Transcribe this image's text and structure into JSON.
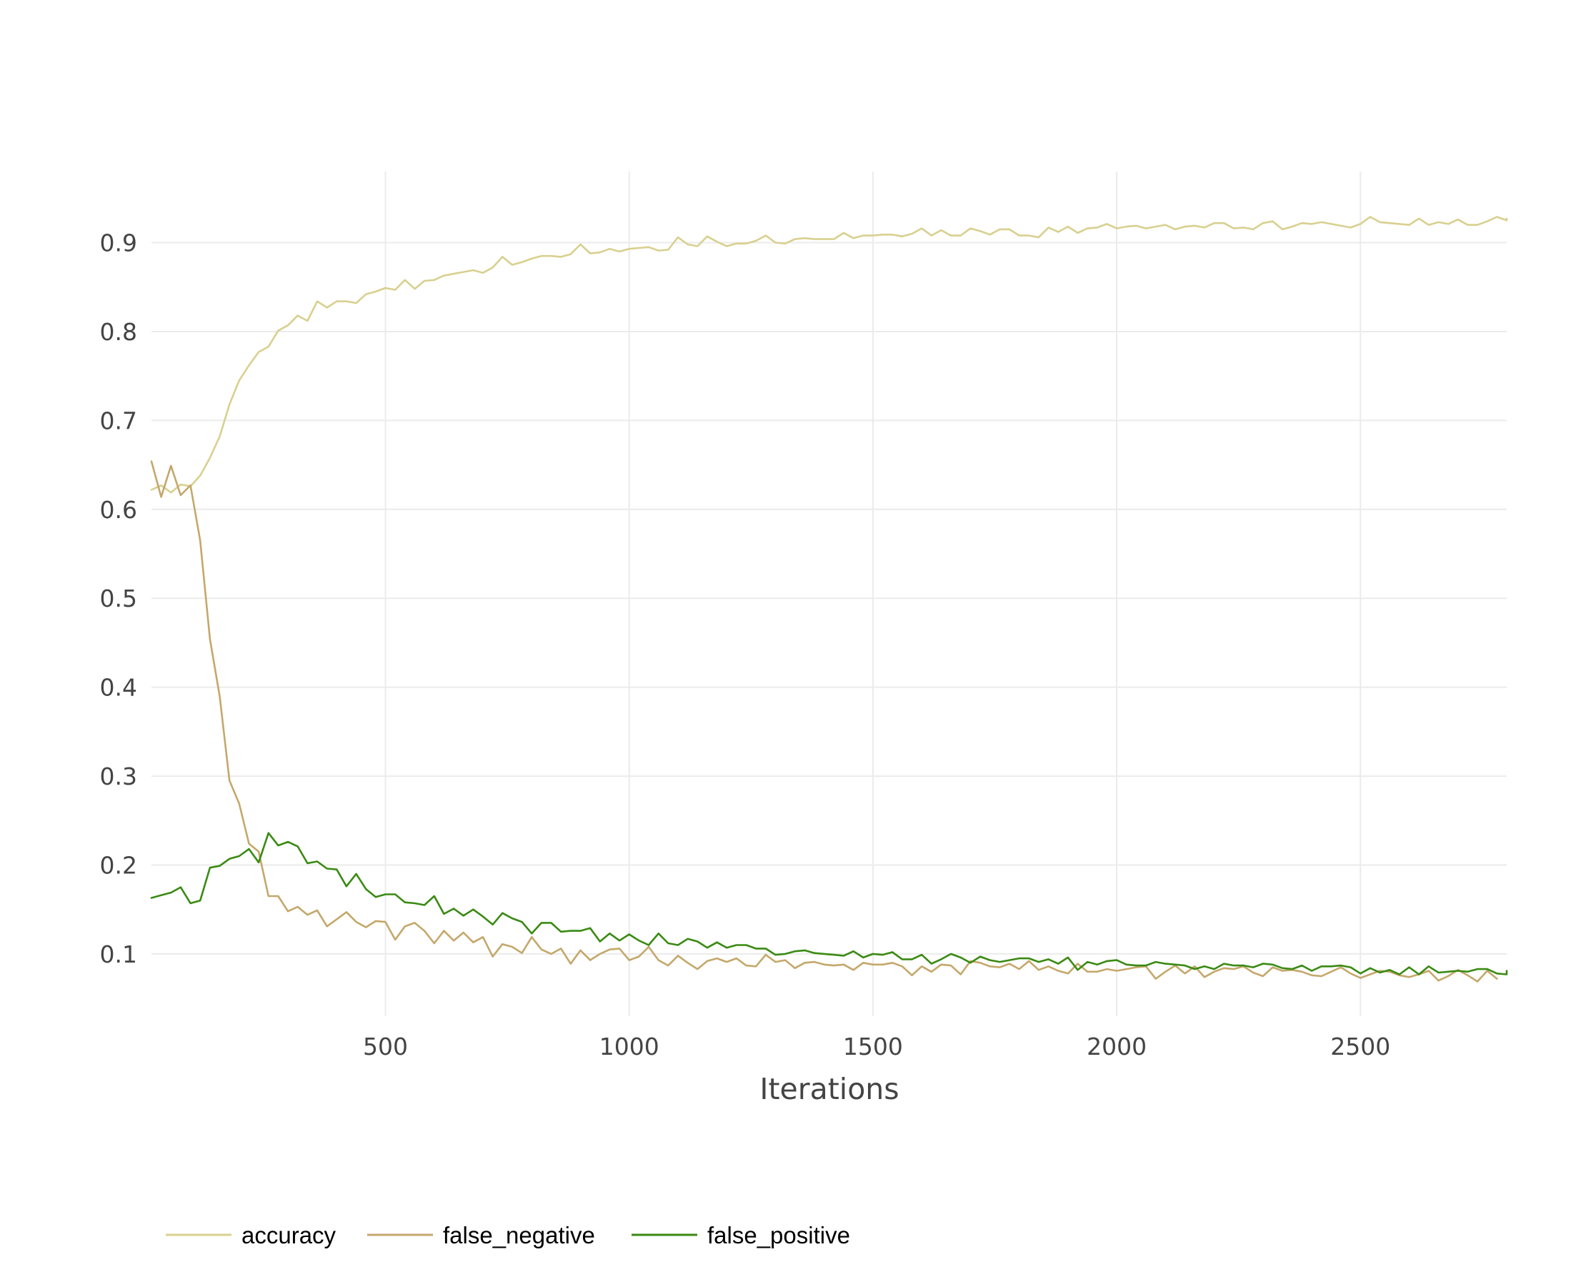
{
  "chart_data": {
    "type": "line",
    "title": "",
    "xlabel": "Iterations",
    "ylabel": "",
    "xlim": [
      20,
      2800
    ],
    "ylim": [
      0.03,
      0.98
    ],
    "xticks": [
      500,
      1000,
      1500,
      2000,
      2500
    ],
    "yticks": [
      0.1,
      0.2,
      0.3,
      0.4,
      0.5,
      0.6,
      0.7,
      0.8,
      0.9
    ],
    "ytick_labels": [
      "0.1",
      "0.2",
      "0.3",
      "0.4",
      "0.5",
      "0.6",
      "0.7",
      "0.8",
      "0.9"
    ],
    "grid": true,
    "legend_position": "bottom-left",
    "x_start": 20,
    "x_step": 20,
    "series": [
      {
        "name": "accuracy",
        "color": "#d8d08f",
        "values": [
          0.622,
          0.627,
          0.619,
          0.628,
          0.626,
          0.638,
          0.658,
          0.682,
          0.718,
          0.745,
          0.762,
          0.777,
          0.783,
          0.801,
          0.807,
          0.818,
          0.812,
          0.834,
          0.827,
          0.834,
          0.834,
          0.832,
          0.842,
          0.845,
          0.849,
          0.847,
          0.858,
          0.848,
          0.857,
          0.858,
          0.863,
          0.865,
          0.867,
          0.869,
          0.866,
          0.872,
          0.884,
          0.875,
          0.878,
          0.882,
          0.885,
          0.885,
          0.884,
          0.887,
          0.898,
          0.888,
          0.889,
          0.893,
          0.89,
          0.893,
          0.894,
          0.895,
          0.891,
          0.892,
          0.906,
          0.898,
          0.896,
          0.907,
          0.901,
          0.896,
          0.899,
          0.899,
          0.902,
          0.908,
          0.9,
          0.899,
          0.904,
          0.905,
          0.904,
          0.904,
          0.904,
          0.911,
          0.905,
          0.908,
          0.908,
          0.909,
          0.909,
          0.907,
          0.91,
          0.916,
          0.908,
          0.914,
          0.908,
          0.908,
          0.916,
          0.913,
          0.909,
          0.915,
          0.915,
          0.908,
          0.908,
          0.906,
          0.917,
          0.912,
          0.918,
          0.911,
          0.916,
          0.917,
          0.921,
          0.916,
          0.918,
          0.919,
          0.916,
          0.918,
          0.92,
          0.915,
          0.918,
          0.919,
          0.917,
          0.922,
          0.922,
          0.916,
          0.917,
          0.915,
          0.922,
          0.924,
          0.915,
          0.918,
          0.922,
          0.921,
          0.923,
          0.921,
          0.919,
          0.917,
          0.921,
          0.929,
          0.923,
          0.922,
          0.921,
          0.92,
          0.927,
          0.92,
          0.923,
          0.921,
          0.926,
          0.92,
          0.92,
          0.924,
          0.929,
          0.925,
          0.927
        ]
      },
      {
        "name": "false_negative",
        "color": "#c4a86b",
        "values": [
          0.654,
          0.614,
          0.649,
          0.616,
          0.627,
          0.565,
          0.454,
          0.39,
          0.295,
          0.269,
          0.224,
          0.215,
          0.165,
          0.165,
          0.148,
          0.153,
          0.144,
          0.149,
          0.131,
          0.139,
          0.147,
          0.136,
          0.13,
          0.137,
          0.136,
          0.116,
          0.131,
          0.135,
          0.126,
          0.112,
          0.126,
          0.115,
          0.124,
          0.113,
          0.119,
          0.097,
          0.111,
          0.108,
          0.101,
          0.119,
          0.105,
          0.1,
          0.106,
          0.089,
          0.104,
          0.093,
          0.1,
          0.105,
          0.106,
          0.093,
          0.097,
          0.108,
          0.093,
          0.087,
          0.098,
          0.09,
          0.083,
          0.092,
          0.095,
          0.091,
          0.095,
          0.087,
          0.086,
          0.099,
          0.091,
          0.093,
          0.084,
          0.09,
          0.091,
          0.088,
          0.087,
          0.088,
          0.082,
          0.09,
          0.088,
          0.088,
          0.09,
          0.086,
          0.076,
          0.086,
          0.08,
          0.088,
          0.087,
          0.077,
          0.092,
          0.09,
          0.086,
          0.085,
          0.089,
          0.083,
          0.092,
          0.082,
          0.086,
          0.081,
          0.078,
          0.089,
          0.08,
          0.08,
          0.083,
          0.081,
          0.083,
          0.085,
          0.086,
          0.072,
          0.08,
          0.087,
          0.078,
          0.086,
          0.074,
          0.08,
          0.084,
          0.083,
          0.086,
          0.079,
          0.075,
          0.085,
          0.081,
          0.082,
          0.08,
          0.076,
          0.075,
          0.08,
          0.085,
          0.078,
          0.073,
          0.077,
          0.081,
          0.08,
          0.076,
          0.074,
          0.077,
          0.081,
          0.07,
          0.075,
          0.082,
          0.076,
          0.069,
          0.081,
          0.072
        ]
      },
      {
        "name": "false_positive",
        "color": "#3a8a13",
        "values": [
          0.163,
          0.166,
          0.169,
          0.175,
          0.157,
          0.16,
          0.197,
          0.199,
          0.207,
          0.21,
          0.218,
          0.203,
          0.236,
          0.222,
          0.226,
          0.221,
          0.202,
          0.204,
          0.196,
          0.195,
          0.176,
          0.19,
          0.173,
          0.164,
          0.167,
          0.167,
          0.158,
          0.157,
          0.155,
          0.165,
          0.145,
          0.151,
          0.143,
          0.15,
          0.142,
          0.133,
          0.146,
          0.14,
          0.136,
          0.123,
          0.135,
          0.135,
          0.125,
          0.126,
          0.126,
          0.129,
          0.114,
          0.123,
          0.115,
          0.122,
          0.115,
          0.11,
          0.123,
          0.112,
          0.11,
          0.117,
          0.114,
          0.107,
          0.113,
          0.107,
          0.11,
          0.11,
          0.106,
          0.106,
          0.099,
          0.1,
          0.103,
          0.104,
          0.101,
          0.1,
          0.099,
          0.098,
          0.103,
          0.096,
          0.1,
          0.099,
          0.102,
          0.094,
          0.094,
          0.099,
          0.089,
          0.094,
          0.1,
          0.096,
          0.09,
          0.097,
          0.093,
          0.091,
          0.093,
          0.095,
          0.095,
          0.091,
          0.094,
          0.089,
          0.096,
          0.082,
          0.091,
          0.088,
          0.092,
          0.093,
          0.088,
          0.087,
          0.087,
          0.091,
          0.089,
          0.088,
          0.087,
          0.083,
          0.086,
          0.083,
          0.089,
          0.087,
          0.087,
          0.085,
          0.089,
          0.088,
          0.084,
          0.083,
          0.087,
          0.081,
          0.086,
          0.086,
          0.087,
          0.085,
          0.078,
          0.084,
          0.079,
          0.082,
          0.077,
          0.085,
          0.077,
          0.086,
          0.079,
          0.08,
          0.081,
          0.08,
          0.083,
          0.083,
          0.078,
          0.077,
          0.081
        ]
      }
    ]
  }
}
